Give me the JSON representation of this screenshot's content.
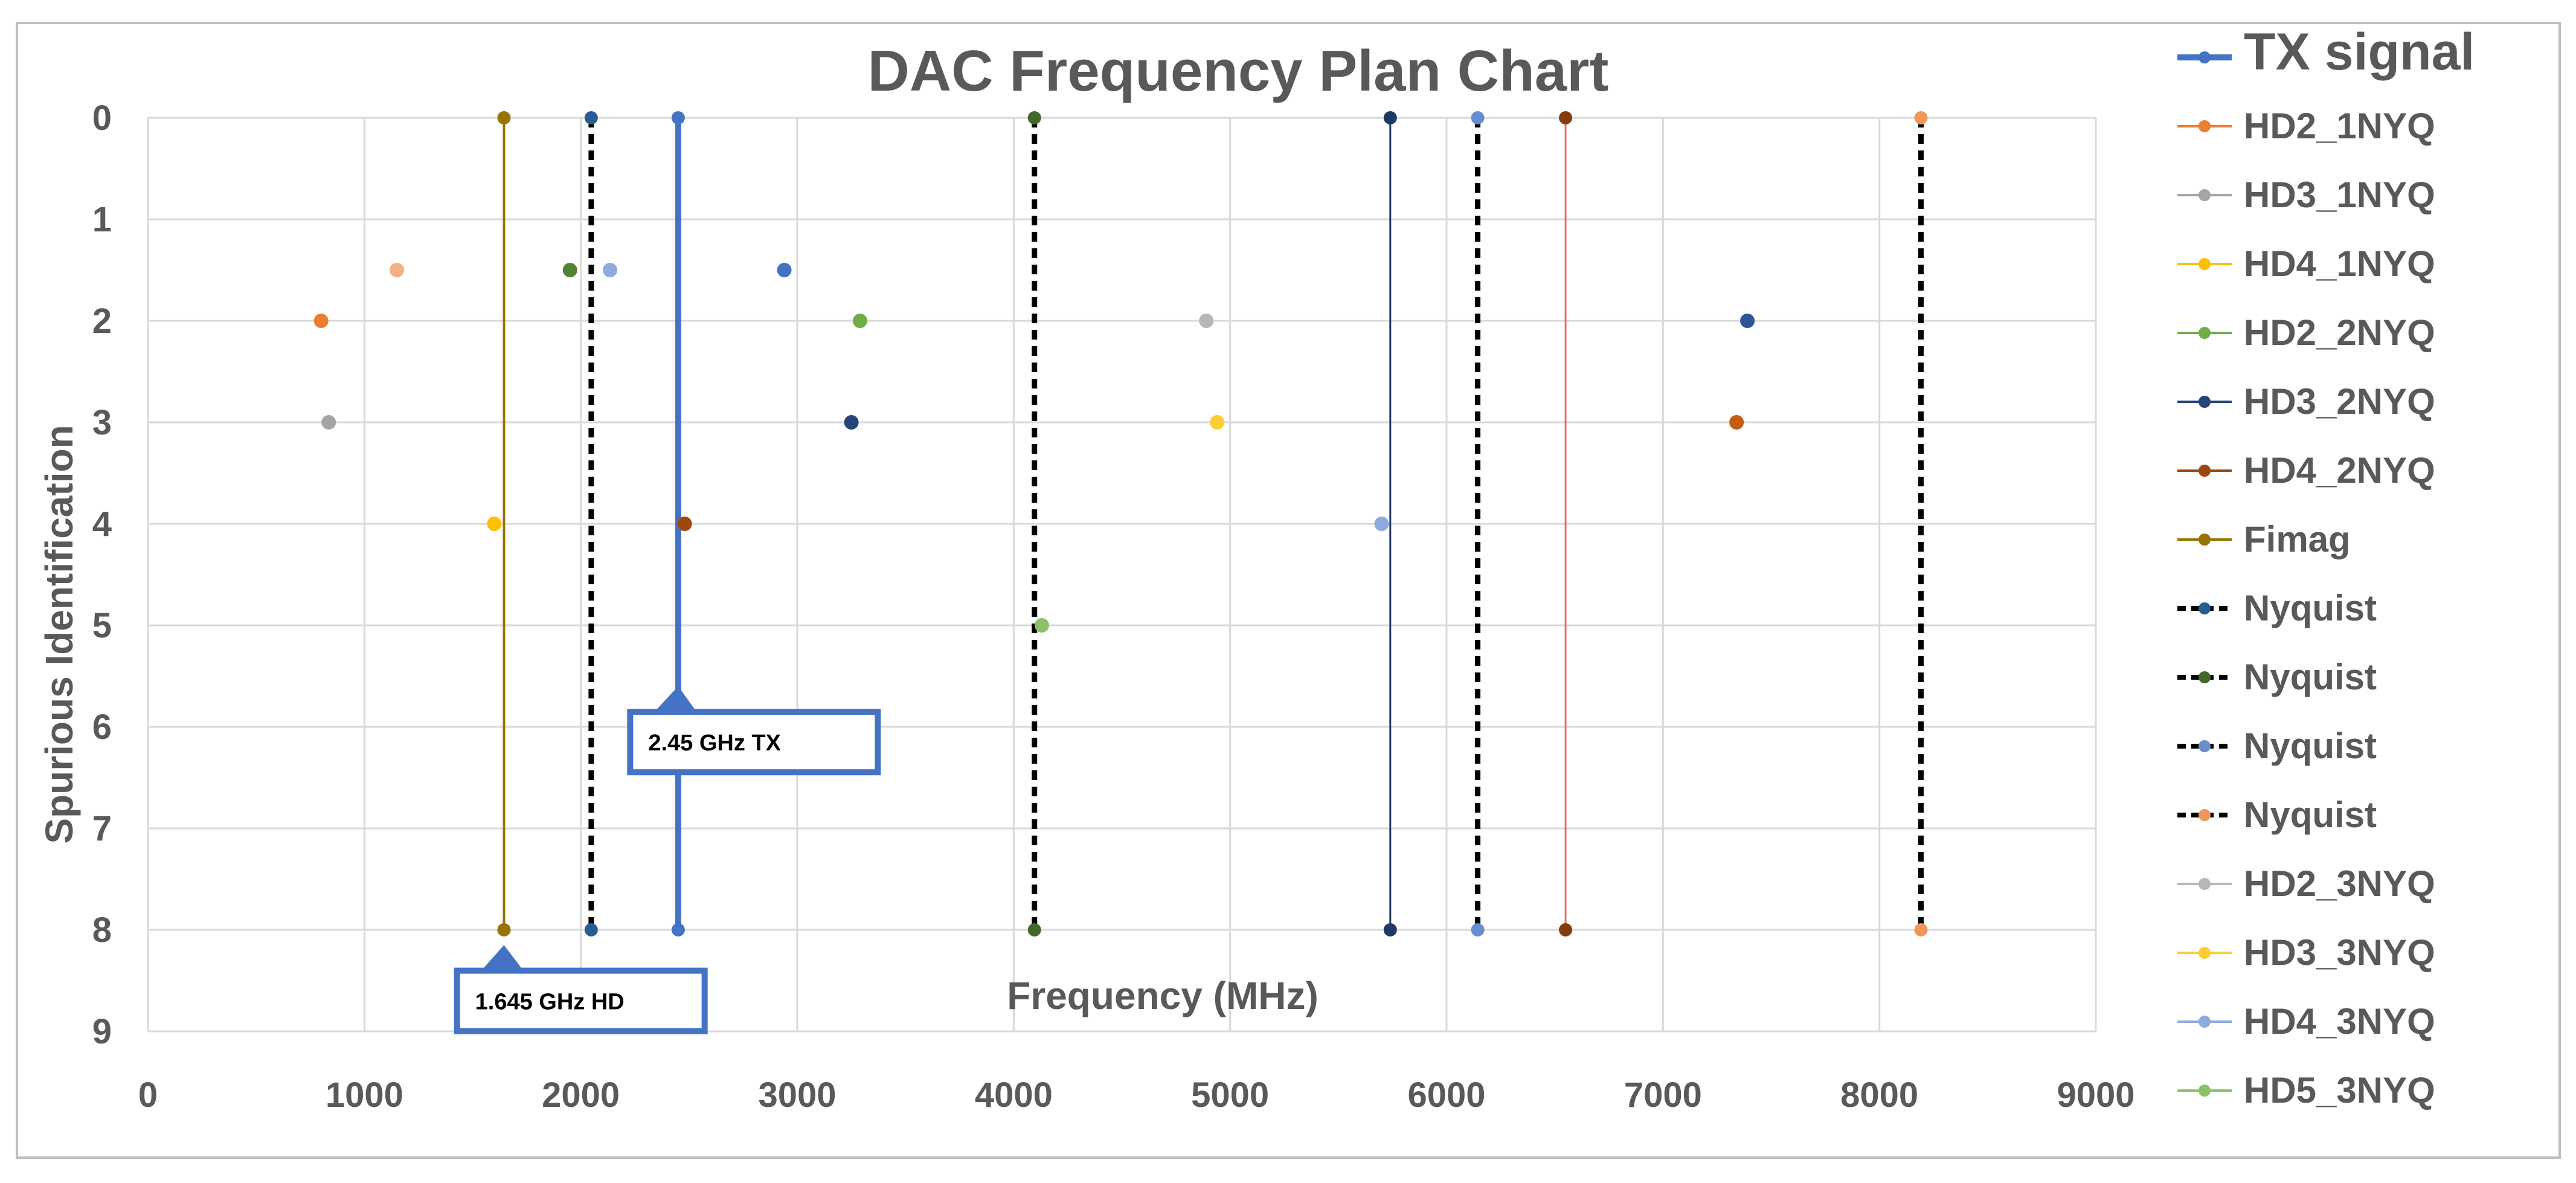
{
  "chart_data": {
    "type": "scatter",
    "title": "DAC Frequency Plan Chart",
    "xlabel": "Frequency (MHz)",
    "ylabel": "Spurious Identification",
    "xlim": [
      0,
      9000
    ],
    "ylim": [
      0,
      9
    ],
    "y_axis_reversed": true,
    "grid": true,
    "legend_position": "right",
    "x_ticks": [
      "0",
      "1000",
      "2000",
      "3000",
      "4000",
      "5000",
      "6000",
      "7000",
      "8000",
      "9000"
    ],
    "y_ticks": [
      "0",
      "1",
      "2",
      "3",
      "4",
      "5",
      "6",
      "7",
      "8",
      "9"
    ],
    "series": [
      {
        "name": "TX signal",
        "color": "#4472C4",
        "kind": "line",
        "width": 10,
        "dash": "",
        "points": [
          [
            2450,
            0
          ],
          [
            2450,
            8
          ]
        ]
      },
      {
        "name": "HD2_1NYQ",
        "color": "#ED7D31",
        "kind": "point",
        "points": [
          [
            800,
            2
          ]
        ]
      },
      {
        "name": "HD3_1NYQ",
        "color": "#A5A5A5",
        "kind": "point",
        "points": [
          [
            835,
            3
          ]
        ]
      },
      {
        "name": "HD4_1NYQ",
        "color": "#FFC000",
        "kind": "point",
        "points": [
          [
            1600,
            4
          ]
        ]
      },
      {
        "name": "HD2_2NYQ",
        "color": "#70AD47",
        "kind": "point",
        "points": [
          [
            3290,
            2
          ]
        ]
      },
      {
        "name": "HD3_2NYQ",
        "color": "#264478",
        "kind": "point",
        "points": [
          [
            3250,
            3
          ]
        ]
      },
      {
        "name": "HD4_2NYQ",
        "color": "#9E480E",
        "kind": "point",
        "points": [
          [
            2480,
            4
          ]
        ]
      },
      {
        "name": "Fimag",
        "color": "#997300",
        "kind": "line",
        "width": 4,
        "dash": "",
        "points": [
          [
            1645,
            0
          ],
          [
            1645,
            8
          ]
        ]
      },
      {
        "name": "Nyquist",
        "color": "#255E91",
        "kind": "dash",
        "width": 9,
        "dash": "16,11",
        "points": [
          [
            2048,
            0
          ],
          [
            2048,
            8
          ]
        ]
      },
      {
        "name": "Nyquist",
        "color": "#43682B",
        "kind": "dash",
        "width": 9,
        "dash": "16,11",
        "points": [
          [
            4096,
            0
          ],
          [
            4096,
            8
          ]
        ]
      },
      {
        "name": "Nyquist",
        "color": "#698ED0",
        "kind": "dash",
        "width": 9,
        "dash": "16,11",
        "points": [
          [
            6144,
            0
          ],
          [
            6144,
            8
          ]
        ]
      },
      {
        "name": "Nyquist",
        "color": "#F1975A",
        "kind": "dash",
        "width": 9,
        "dash": "16,11",
        "points": [
          [
            8192,
            0
          ],
          [
            8192,
            8
          ]
        ]
      },
      {
        "name": "HD2_3NYQ",
        "color": "#B7B7B7",
        "kind": "point",
        "points": [
          [
            4890,
            2
          ]
        ]
      },
      {
        "name": "HD3_3NYQ",
        "color": "#FFCD33",
        "kind": "point",
        "points": [
          [
            4940,
            3
          ]
        ]
      },
      {
        "name": "HD4_3NYQ",
        "color": "#8FAADC",
        "kind": "point",
        "points": [
          [
            5700,
            4
          ]
        ]
      },
      {
        "name": "HD5_3NYQ",
        "color": "#8CC168",
        "kind": "point",
        "points": [
          [
            4130,
            5
          ]
        ]
      }
    ],
    "unlisted_series": [
      {
        "color": "#F4B183",
        "kind": "point",
        "points": [
          [
            1150,
            1.5
          ]
        ]
      },
      {
        "color": "#548235",
        "kind": "point",
        "points": [
          [
            1950,
            1.5
          ]
        ]
      },
      {
        "color": "#8FAADC",
        "kind": "point",
        "points": [
          [
            2135,
            1.5
          ]
        ]
      },
      {
        "color": "#4472C4",
        "kind": "point",
        "points": [
          [
            2940,
            1.5
          ]
        ]
      },
      {
        "color": "#2F5597",
        "kind": "point",
        "points": [
          [
            7390,
            2
          ]
        ]
      },
      {
        "color": "#C55A11",
        "kind": "point",
        "points": [
          [
            7340,
            3
          ]
        ]
      },
      {
        "color": "#203864",
        "kind": "line",
        "width": 3,
        "dash": "",
        "points": [
          [
            5740,
            0
          ],
          [
            5740,
            8
          ]
        ]
      },
      {
        "color": "#C00000",
        "kind": "line",
        "width": 3,
        "dash": "",
        "points": [
          [
            6550,
            0
          ],
          [
            6550,
            8
          ]
        ],
        "line_color": "#E07070",
        "marker_color": "#843C0C"
      }
    ],
    "annotations": [
      {
        "text": "2.45 GHz TX",
        "target": [
          2450,
          5.6
        ],
        "box_at": [
          2800,
          6.15
        ]
      },
      {
        "text": "1.645 GHz HD",
        "target": [
          1645,
          8.15
        ],
        "box_at": [
          2000,
          8.7
        ]
      }
    ]
  }
}
